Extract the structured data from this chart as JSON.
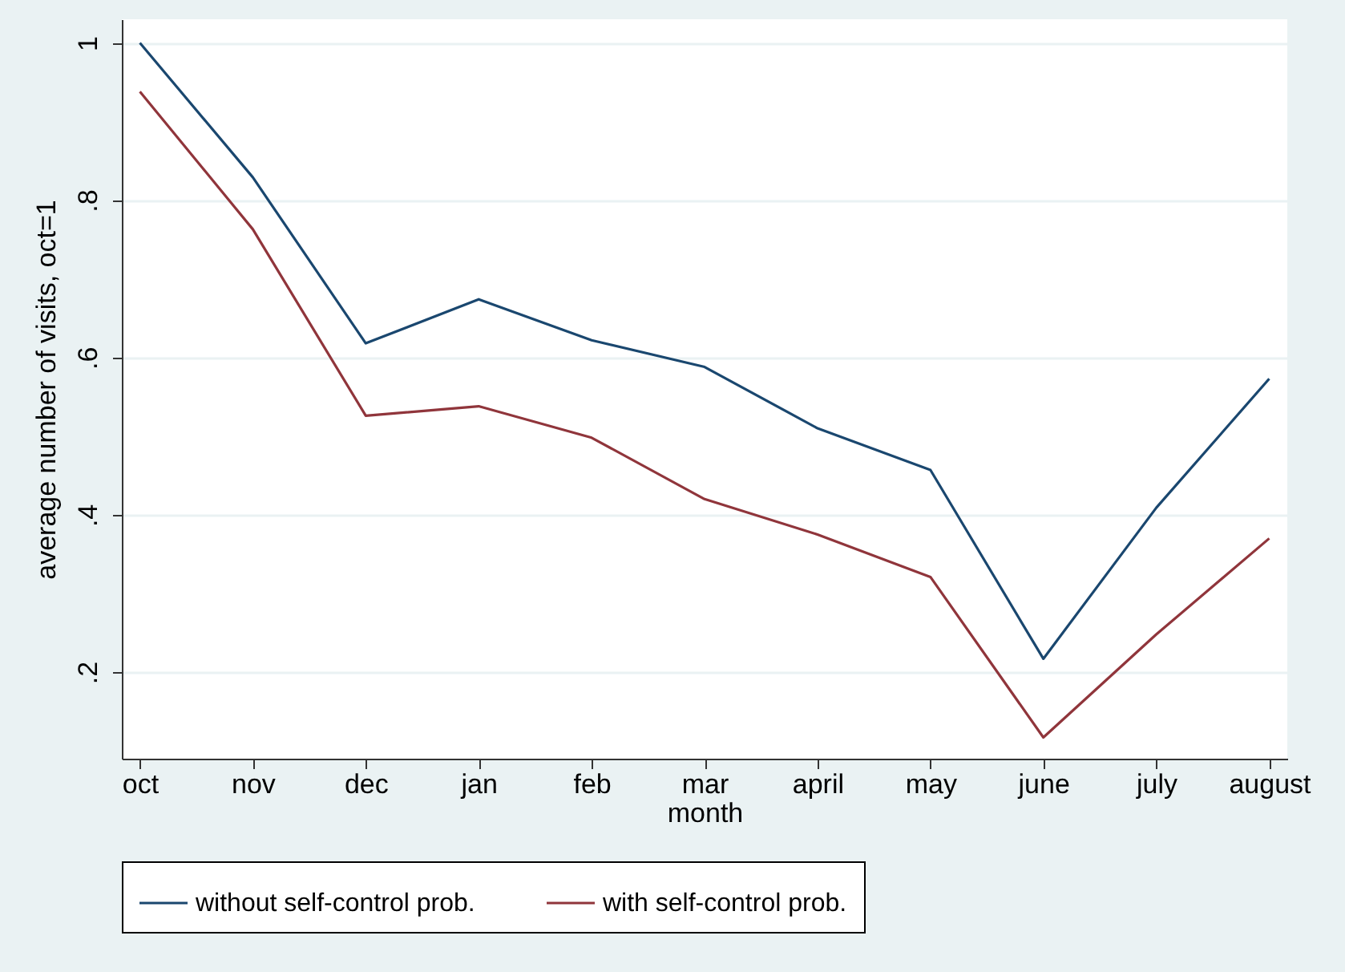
{
  "chart_data": {
    "type": "line",
    "xlabel": "month",
    "ylabel": "average number of visits, oct=1",
    "categories": [
      "oct",
      "nov",
      "dec",
      "jan",
      "feb",
      "mar",
      "april",
      "may",
      "june",
      "july",
      "august"
    ],
    "series": [
      {
        "name": "without self-control prob.",
        "color": "#1a476f",
        "values": [
          1.0,
          0.829,
          0.618,
          0.674,
          0.622,
          0.588,
          0.51,
          0.457,
          0.217,
          0.409,
          0.573
        ]
      },
      {
        "name": "with self-control prob.",
        "color": "#90353b",
        "values": [
          0.938,
          0.763,
          0.526,
          0.538,
          0.498,
          0.42,
          0.375,
          0.321,
          0.117,
          0.248,
          0.37
        ]
      }
    ],
    "ylim": [
      0.09,
      1.03
    ],
    "yticks": [
      {
        "value": 0.2,
        "label": ".2"
      },
      {
        "value": 0.4,
        "label": ".4"
      },
      {
        "value": 0.6,
        "label": ".6"
      },
      {
        "value": 0.8,
        "label": ".8"
      },
      1
    ],
    "grid": "y",
    "legend": "bottom",
    "marker": "none",
    "line_style": "solid"
  }
}
